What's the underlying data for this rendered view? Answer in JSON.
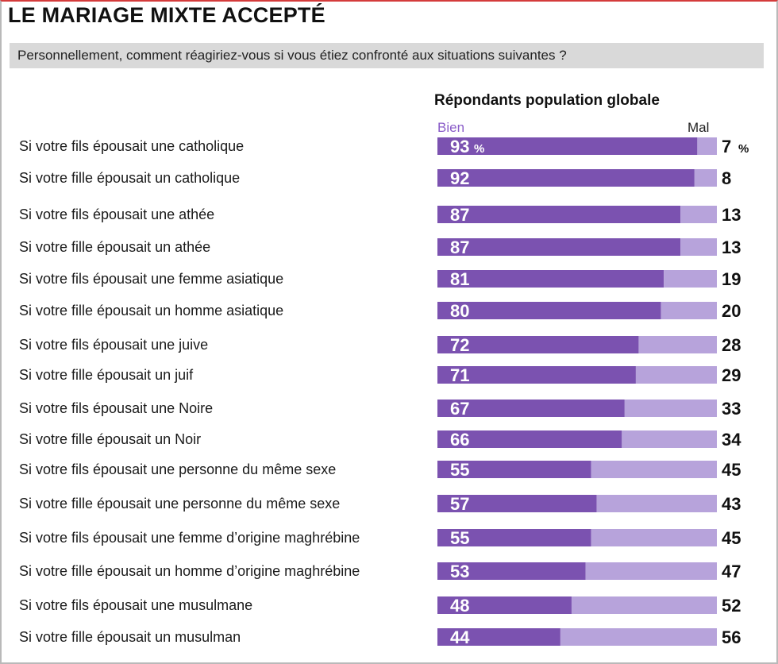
{
  "title": "LE MARIAGE MIXTE ACCEPTÉ",
  "question": "Personnellement, comment réagiriez-vous si vous étiez confronté aux situations suivantes ?",
  "colors": {
    "bien": "#7b52b0",
    "mal": "#b7a3db",
    "bien_label": "#8a5cc8"
  },
  "chart_data": {
    "type": "bar",
    "stacked": true,
    "orientation": "horizontal",
    "title": "Répondants population globale",
    "legend": {
      "bien": "Bien",
      "mal": "Mal"
    },
    "unit": "%",
    "categories": [
      "Si votre fils épousait une catholique",
      "Si votre fille épousait un catholique",
      "Si votre fils épousait une athée",
      "Si votre fille épousait un athée",
      "Si votre fils épousait une femme asiatique",
      "Si votre fille épousait un homme asiatique",
      "Si votre fils épousait une juive",
      "Si votre fille épousait un juif",
      "Si votre fils épousait une Noire",
      "Si votre fille épousait un Noir",
      "Si votre fils épousait une personne du même sexe",
      "Si votre fille épousait une personne du même sexe",
      "Si votre fils épousait une femme d’origine maghrébine",
      "Si votre fille épousait un homme d’origine maghrébine",
      "Si votre fils épousait une musulmane",
      "Si votre fille épousait un musulman"
    ],
    "series": [
      {
        "name": "Bien",
        "values": [
          93,
          92,
          87,
          87,
          81,
          80,
          72,
          71,
          67,
          66,
          55,
          57,
          55,
          53,
          48,
          44
        ]
      },
      {
        "name": "Mal",
        "values": [
          7,
          8,
          13,
          13,
          19,
          20,
          28,
          29,
          33,
          34,
          45,
          43,
          45,
          47,
          52,
          56
        ]
      }
    ],
    "xlim": [
      0,
      100
    ]
  }
}
